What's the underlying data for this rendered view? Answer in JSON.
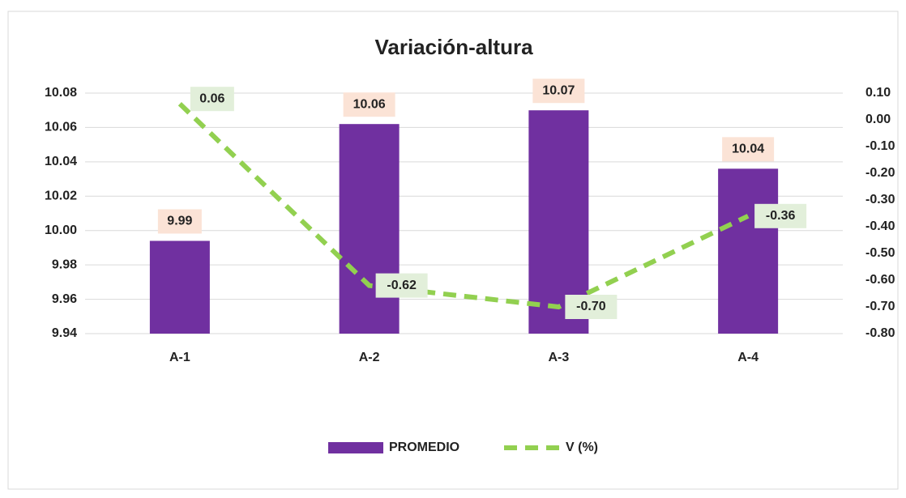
{
  "chart_data": {
    "type": "bar_line",
    "title": "Variación-altura",
    "categories": [
      "A-1",
      "A-2",
      "A-3",
      "A-4"
    ],
    "series": [
      {
        "name": "PROMEDIO",
        "type": "bar",
        "color": "#7030a0",
        "values": [
          9.994,
          10.062,
          10.07,
          10.036
        ],
        "value_labels": [
          "9.99",
          "10.06",
          "10.07",
          "10.04"
        ]
      },
      {
        "name": "V (%)",
        "type": "line",
        "axis": "y2",
        "color": "#92d050",
        "values": [
          0.06,
          -0.62,
          -0.7,
          -0.36
        ],
        "value_labels": [
          "0.06",
          "-0.62",
          "-0.70",
          "-0.36"
        ]
      }
    ],
    "ylim": [
      9.94,
      10.08
    ],
    "yticks": [
      9.94,
      9.96,
      9.98,
      {
        "value": 10,
        "label": "10.00"
      },
      10.02,
      10.04,
      10.06,
      10.08
    ],
    "y2lim": [
      -0.8,
      0.1
    ],
    "y2ticks": [
      {
        "value": -0.8,
        "label": "-0.80"
      },
      {
        "value": -0.7,
        "label": "-0.70"
      },
      {
        "value": -0.6,
        "label": "-0.60"
      },
      {
        "value": -0.5,
        "label": "-0.50"
      },
      {
        "value": -0.4,
        "label": "-0.40"
      },
      {
        "value": -0.3,
        "label": "-0.30"
      },
      {
        "value": -0.2,
        "label": "-0.20"
      },
      {
        "value": -0.1,
        "label": "-0.10"
      },
      {
        "value": 0,
        "label": "0.00"
      },
      {
        "value": 0.1,
        "label": "0.10"
      }
    ],
    "grid": true,
    "legend": "bottom"
  }
}
